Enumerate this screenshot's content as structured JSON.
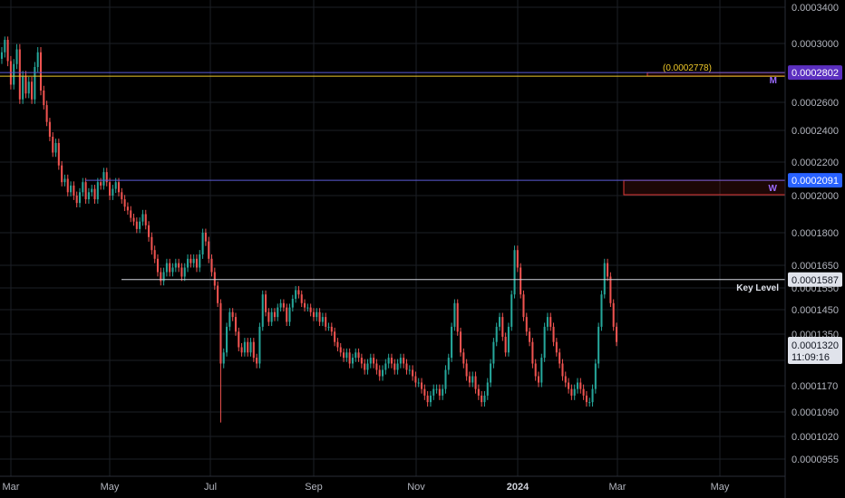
{
  "chart_data": {
    "type": "candlestick",
    "y_axis": {
      "ticks": [
        {
          "v": 0.00034,
          "label": "0.0003400"
        },
        {
          "v": 0.0003,
          "label": "0.0003000"
        },
        {
          "v": 0.00026,
          "label": "0.0002600"
        },
        {
          "v": 0.00024,
          "label": "0.0002400"
        },
        {
          "v": 0.00022,
          "label": "0.0002200"
        },
        {
          "v": 0.0002,
          "label": "0.0002000"
        },
        {
          "v": 0.00018,
          "label": "0.0001800"
        },
        {
          "v": 0.000165,
          "label": "0.0001650"
        },
        {
          "v": 0.000155,
          "label": "0.0001550"
        },
        {
          "v": 0.000145,
          "label": "0.0001450"
        },
        {
          "v": 0.000135,
          "label": "0.0001350"
        },
        {
          "v": 0.000125,
          "label": "0.0001250"
        },
        {
          "v": 0.000117,
          "label": "0.0001170"
        },
        {
          "v": 0.000109,
          "label": "0.0001090"
        },
        {
          "v": 0.000102,
          "label": "0.0001020"
        },
        {
          "v": 9.55e-05,
          "label": "0.0000955"
        }
      ]
    },
    "x_axis": {
      "ticks": [
        {
          "label": "Mar",
          "bold": false
        },
        {
          "label": "May",
          "bold": false
        },
        {
          "label": "Jul",
          "bold": false
        },
        {
          "label": "Sep",
          "bold": false
        },
        {
          "label": "Nov",
          "bold": false
        },
        {
          "label": "2024",
          "bold": true
        },
        {
          "label": "Mar",
          "bold": false
        },
        {
          "label": "May",
          "bold": false
        }
      ]
    },
    "levels": [
      {
        "name": "monthly-level",
        "value": 0.0002802,
        "label": "0.0002802",
        "color": "#5b2fc0",
        "tag": "M",
        "line_color": "#5b5bd6"
      },
      {
        "name": "weekly-level",
        "value": 0.0002091,
        "label": "0.0002091",
        "color": "#2962ff",
        "tag": "W",
        "line_color": "#5b5bd6"
      },
      {
        "name": "key-level",
        "value": 0.0001587,
        "label": "0.0001587",
        "color": "#e0e3eb",
        "tag": "Key Level",
        "line_color": "#d1d4dc"
      }
    ],
    "yellow_level": {
      "value": 0.0002778,
      "label": "(0.0002778)",
      "color": "#f0c929"
    },
    "current_price": {
      "label": "0.0001320",
      "countdown": "11:09:16",
      "color": "#e0e3eb"
    },
    "zones": [
      {
        "name": "monthly-zone",
        "top": 0.0002802,
        "bottom": 0.0002778,
        "color": "#e53935"
      },
      {
        "name": "weekly-zone",
        "top": 0.0002091,
        "bottom": 0.0002005,
        "color": "#e53935"
      }
    ],
    "colors": {
      "up": "#26a69a",
      "down": "#ef5350",
      "background": "#000000",
      "grid": "#1c1f26",
      "text": "#b2b5be"
    },
    "candles_close": [
      0.000294,
      0.000304,
      0.000288,
      0.000272,
      0.000286,
      0.000296,
      0.000262,
      0.000278,
      0.000266,
      0.000274,
      0.000262,
      0.000284,
      0.000294,
      0.000268,
      0.000258,
      0.000246,
      0.000236,
      0.000226,
      0.000232,
      0.000218,
      0.000208,
      0.00021,
      0.000202,
      0.000206,
      0.0002,
      0.000196,
      0.000202,
      0.000208,
      0.000198,
      0.000202,
      0.000204,
      0.000198,
      0.000208,
      0.000206,
      0.000214,
      0.000208,
      0.0002,
      0.000204,
      0.000208,
      0.000202,
      0.000198,
      0.000194,
      0.000192,
      0.000188,
      0.000186,
      0.000182,
      0.000186,
      0.00019,
      0.000184,
      0.000178,
      0.000172,
      0.000168,
      0.000162,
      0.000158,
      0.000162,
      0.000166,
      0.000162,
      0.000164,
      0.000166,
      0.000164,
      0.00016,
      0.000164,
      0.000168,
      0.000166,
      0.000168,
      0.000164,
      0.00017,
      0.00018,
      0.000176,
      0.000168,
      0.000162,
      0.000156,
      0.000148,
      0.000124,
      0.000128,
      0.000138,
      0.000144,
      0.000142,
      0.000136,
      0.00013,
      0.000128,
      0.000132,
      0.000128,
      0.000132,
      0.000126,
      0.000124,
      0.000138,
      0.000152,
      0.000144,
      0.00014,
      0.000144,
      0.000142,
      0.000146,
      0.000148,
      0.000146,
      0.00014,
      0.000146,
      0.00015,
      0.000154,
      0.000152,
      0.000148,
      0.000146,
      0.000146,
      0.000144,
      0.000142,
      0.000144,
      0.00014,
      0.000142,
      0.000138,
      0.000138,
      0.000136,
      0.000132,
      0.00013,
      0.000128,
      0.000126,
      0.000128,
      0.000124,
      0.000126,
      0.000128,
      0.000126,
      0.000124,
      0.000122,
      0.000124,
      0.000126,
      0.000124,
      0.000122,
      0.00012,
      0.000122,
      0.000124,
      0.000126,
      0.000124,
      0.000122,
      0.000124,
      0.000126,
      0.000124,
      0.000122,
      0.000122,
      0.00012,
      0.000118,
      0.000118,
      0.000116,
      0.000114,
      0.000112,
      0.000114,
      0.000116,
      0.000116,
      0.000114,
      0.000116,
      0.000122,
      0.000126,
      0.000138,
      0.000148,
      0.000136,
      0.000128,
      0.000124,
      0.00012,
      0.000118,
      0.00012,
      0.000116,
      0.000114,
      0.000112,
      0.000114,
      0.000118,
      0.000124,
      0.000132,
      0.000138,
      0.000142,
      0.000134,
      0.000128,
      0.000138,
      0.000152,
      0.000172,
      0.000164,
      0.000152,
      0.000142,
      0.000136,
      0.000132,
      0.000124,
      0.00012,
      0.000118,
      0.000126,
      0.000138,
      0.000142,
      0.000138,
      0.000132,
      0.000128,
      0.000124,
      0.00012,
      0.000118,
      0.000116,
      0.000114,
      0.000116,
      0.000118,
      0.000116,
      0.000114,
      0.000112,
      0.000112,
      0.000116,
      0.000124,
      0.000138,
      0.000152,
      0.000166,
      0.00016,
      0.000148,
      0.000138,
      0.000132
    ]
  }
}
